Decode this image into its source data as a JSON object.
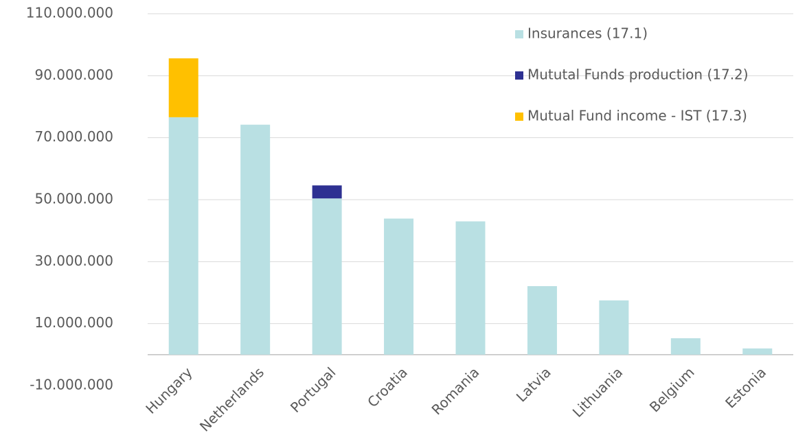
{
  "chart_data": {
    "type": "stacked_bar",
    "categories": [
      "Hungary",
      "Netherlands",
      "Portugal",
      "Croatia",
      "Romania",
      "Latvia",
      "Lithuania",
      "Belgium",
      "Estonia"
    ],
    "series": [
      {
        "name": "Insurances (17.1)",
        "color": "#b9e0e3",
        "values": [
          76600000,
          74200000,
          50400000,
          43900000,
          43000000,
          22100000,
          17500000,
          5300000,
          2000000
        ]
      },
      {
        "name": "Mututal Funds production (17.2)",
        "color": "#2e3192",
        "values": [
          0,
          0,
          4200000,
          0,
          0,
          0,
          0,
          0,
          0
        ]
      },
      {
        "name": "Mutual Fund income - IST (17.3)",
        "color": "#ffc000",
        "values": [
          19000000,
          0,
          0,
          0,
          0,
          0,
          0,
          0,
          0
        ]
      }
    ],
    "ylim": [
      -10000000,
      110000000
    ],
    "yticks": [
      {
        "value": -10000000,
        "label": "-10.000.000"
      },
      {
        "value": 10000000,
        "label": "10.000.000"
      },
      {
        "value": 30000000,
        "label": "30.000.000"
      },
      {
        "value": 50000000,
        "label": "50.000.000"
      },
      {
        "value": 70000000,
        "label": "70.000.000"
      },
      {
        "value": 90000000,
        "label": "90.000.000"
      },
      {
        "value": 110000000,
        "label": "110.000.000"
      }
    ],
    "grid": true,
    "legend": "top-right"
  }
}
